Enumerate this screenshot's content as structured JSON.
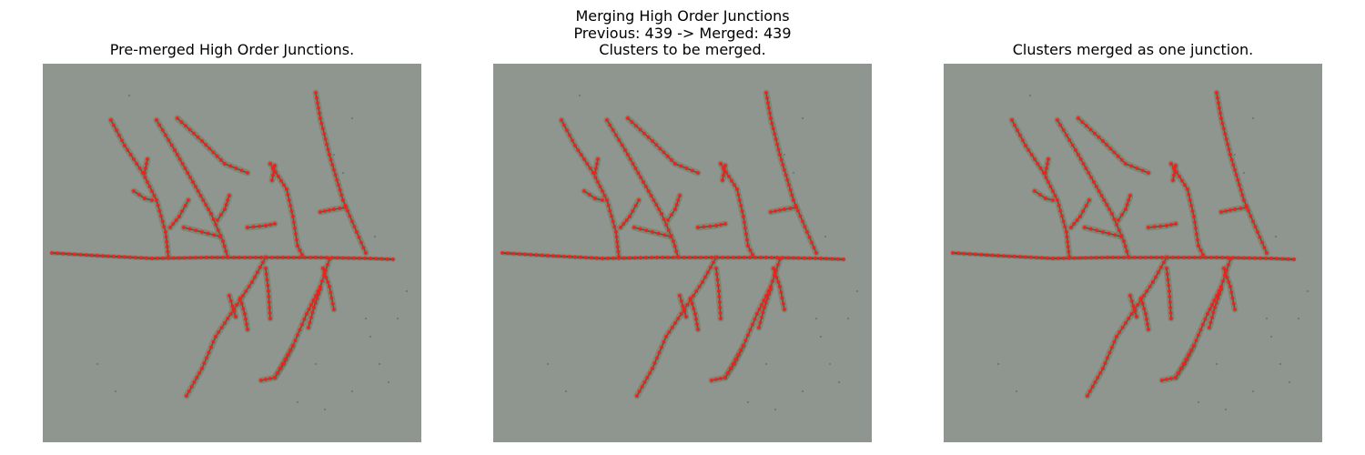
{
  "figure": {
    "title": "Merging High Order Junctions",
    "subtitle": "Previous: 439 -> Merged: 439"
  },
  "panels": [
    {
      "title": "Pre-merged High Order Junctions."
    },
    {
      "title": "Clusters to be merged."
    },
    {
      "title": "Clusters merged as one junction."
    }
  ],
  "colors": {
    "background": "#8f958f",
    "root": "#4d5a45",
    "root_blur": "#5f7a57",
    "marker": "#ff1a1a"
  }
}
